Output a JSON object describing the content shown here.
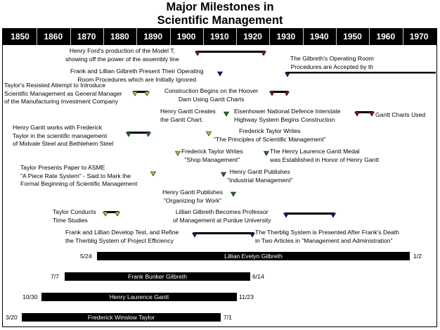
{
  "title_line1": "Major Milestones in",
  "title_line2": "Scientific Management",
  "decades": [
    "1850",
    "1860",
    "1870",
    "1880",
    "1890",
    "1900",
    "1910",
    "1920",
    "1930",
    "1940",
    "1950",
    "1960",
    "1970"
  ],
  "events": [
    {
      "id": "ford",
      "lines": [
        "Henry Ford's production of the Model T,",
        "showing off the power of the assembly line"
      ]
    },
    {
      "id": "or_accepted",
      "lines": [
        "The Gilbreth's Operating Room",
        "Procedures are Accepted by th"
      ]
    },
    {
      "id": "or_present",
      "lines": [
        "Frank and Lillian Gilbreth Present Their Operating",
        "Room Procedures which are Initially Ignored"
      ]
    },
    {
      "id": "resisted",
      "lines": [
        "Taylor's Resisted Attempt to Introduce",
        "Scientific Management as General Manager",
        "of the Manufacturing Investment Company"
      ]
    },
    {
      "id": "hoover",
      "lines": [
        "Construction Begins on the Hoover",
        "Dam Using Gantt Charts"
      ]
    },
    {
      "id": "gantt_chart",
      "lines": [
        "Henry Gantt Creates",
        "the Gantt Chart."
      ]
    },
    {
      "id": "eisenhower",
      "lines": [
        "Eisenhower National Defence Interstate",
        "Highway System Begins Construction"
      ]
    },
    {
      "id": "charts_used",
      "lines": [
        "Gantt Charts Used"
      ]
    },
    {
      "id": "midvale",
      "lines": [
        "Henry Gantt works with Frederick",
        "Taylor in the scientific management",
        "of Midvale Steel and Bethlehem Steel"
      ]
    },
    {
      "id": "principles",
      "lines": [
        "Frederick Taylor Writes",
        "\"The Principles of Scientific Management\""
      ]
    },
    {
      "id": "shop",
      "lines": [
        "Frederick Taylor Writes",
        "\"Shop Management\""
      ]
    },
    {
      "id": "medal",
      "lines": [
        "The Henry Laurence Gantt Medal",
        "was Established in Honor of Henry Gantt"
      ]
    },
    {
      "id": "piece_rate",
      "lines": [
        "Taylor Presents Paper to ASME",
        "\"A Piece Rate System\" - Said to Mark the",
        "Formal Beginning of Scientific Management"
      ]
    },
    {
      "id": "industrial",
      "lines": [
        "Henry Gantt Publishes",
        "\"Industrial Management\""
      ]
    },
    {
      "id": "organizing",
      "lines": [
        "Henry Gantt Publishes",
        "\"Organizing for Work\""
      ]
    },
    {
      "id": "time_studies",
      "lines": [
        "Taylor Conducts",
        "Time Studies"
      ]
    },
    {
      "id": "purdue",
      "lines": [
        "Lillian Gilbreth Becomes Professor",
        "of Management at Purdue University"
      ]
    },
    {
      "id": "therblig_dev",
      "lines": [
        "Frank and Lillian Develop Test, and Refine",
        "the Therblig System of Project Efficiency"
      ]
    },
    {
      "id": "therblig_pub",
      "lines": [
        "The Therblig System is Presented After Frank's Death",
        "in Two Articles in \"Management and Administration\""
      ]
    }
  ],
  "lifespans": [
    {
      "id": "lillian",
      "name": "Lillian Evelyn Gilbreth",
      "start": "5/24",
      "end": "1/2",
      "start_year": 1878.4,
      "end_year": 1972.0
    },
    {
      "id": "frank",
      "name": "Frank Bunker Gilbreth",
      "start": "7/7",
      "end": "6/14",
      "start_year": 1868.5,
      "end_year": 1924.5
    },
    {
      "id": "gantt",
      "name": "Henry Laurence Gantt",
      "start": "10/30",
      "end": "11/23",
      "start_year": 1861.8,
      "end_year": 1919.9
    },
    {
      "id": "taylor",
      "name": "Frederick Winslow Taylor",
      "start": "3/20",
      "end": "7/1",
      "start_year": 1856.2,
      "end_year": 1915.5
    }
  ],
  "colors": {
    "bar": "#000000",
    "marker_maroon": "#8b1a1a",
    "marker_navy": "#1a1a8b",
    "marker_green": "#1f7a1f",
    "marker_olive": "#bdbd3a",
    "scale_bg": "#000000",
    "scale_text": "#ffffff"
  }
}
